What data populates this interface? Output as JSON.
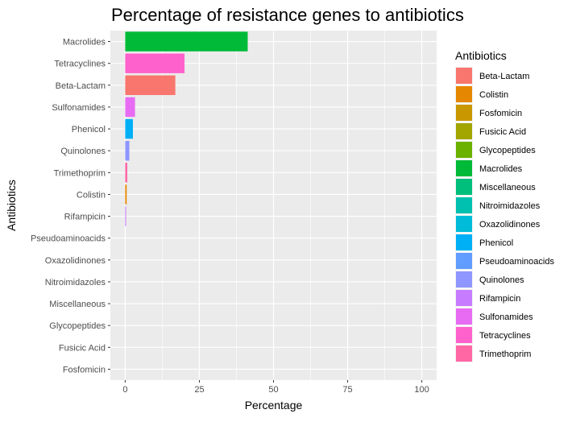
{
  "chart_data": {
    "type": "bar",
    "orientation": "horizontal",
    "title": "Percentage of resistance genes to antibiotics",
    "xlabel": "Percentage",
    "ylabel": "Antibiotics",
    "xlim": [
      0,
      100
    ],
    "x_ticks": [
      0,
      25,
      50,
      75,
      100
    ],
    "x_tick_labels": [
      "0",
      "25",
      "50",
      "75",
      "100"
    ],
    "grid": true,
    "legend_position": "right",
    "legend_title": "Antibiotics",
    "categories": [
      "Macrolides",
      "Tetracyclines",
      "Beta-Lactam",
      "Sulfonamides",
      "Phenicol",
      "Quinolones",
      "Trimethoprim",
      "Colistin",
      "Rifampicin",
      "Pseudoaminoacids",
      "Oxazolidinones",
      "Nitroimidazoles",
      "Miscellaneous",
      "Glycopeptides",
      "Fusicic Acid",
      "Fosfomicin"
    ],
    "values": [
      41.3,
      20.0,
      16.9,
      3.3,
      2.6,
      1.4,
      0.7,
      0.5,
      0.3,
      0,
      0,
      0,
      0,
      0,
      0,
      0
    ],
    "legend": [
      {
        "name": "Beta-Lactam",
        "color": "#F8766D"
      },
      {
        "name": "Colistin",
        "color": "#E58700"
      },
      {
        "name": "Fosfomicin",
        "color": "#C99800"
      },
      {
        "name": "Fusicic Acid",
        "color": "#A3A500"
      },
      {
        "name": "Glycopeptides",
        "color": "#6BB100"
      },
      {
        "name": "Macrolides",
        "color": "#00BA38"
      },
      {
        "name": "Miscellaneous",
        "color": "#00BF7D"
      },
      {
        "name": "Nitroimidazoles",
        "color": "#00C0AF"
      },
      {
        "name": "Oxazolidinones",
        "color": "#00BCD8"
      },
      {
        "name": "Phenicol",
        "color": "#00B0F6"
      },
      {
        "name": "Pseudoaminoacids",
        "color": "#619CFF"
      },
      {
        "name": "Quinolones",
        "color": "#8F96FF"
      },
      {
        "name": "Rifampicin",
        "color": "#C77CFF"
      },
      {
        "name": "Sulfonamides",
        "color": "#E76BF3"
      },
      {
        "name": "Tetracyclines",
        "color": "#FF61CC"
      },
      {
        "name": "Trimethoprim",
        "color": "#FF67A4"
      }
    ],
    "panel_background": "#EBEBEB",
    "grid_color": "#FFFFFF"
  }
}
